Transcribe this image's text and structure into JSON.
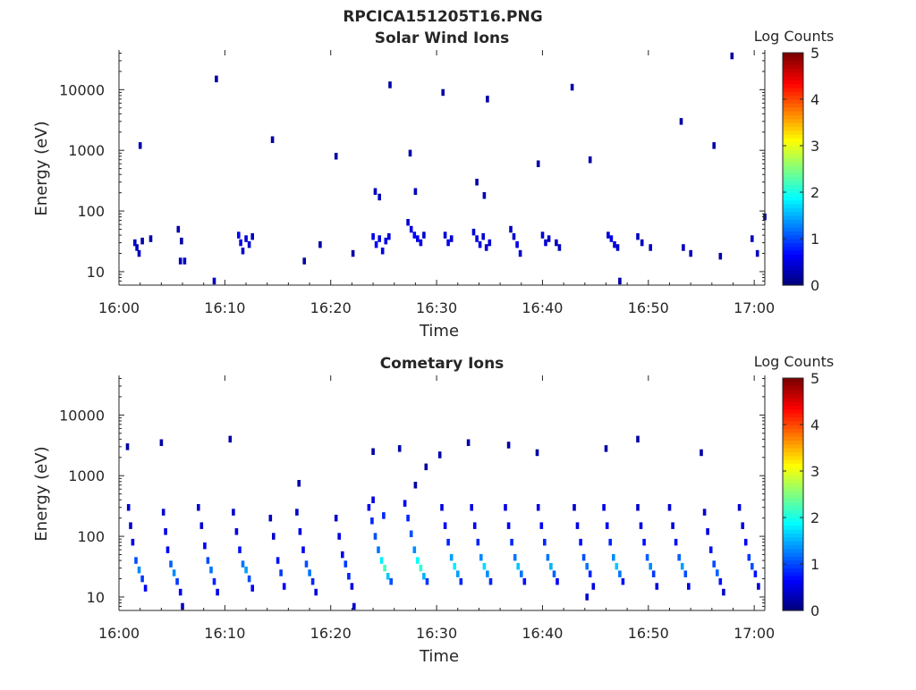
{
  "figure": {
    "title": "RPCICA151205T16.PNG"
  },
  "chart_data": [
    {
      "type": "heatmap",
      "title": "Solar Wind Ions",
      "xlabel": "Time",
      "ylabel": "Energy (eV)",
      "xticks": [
        "16:00",
        "16:10",
        "16:20",
        "16:30",
        "16:40",
        "16:50",
        "17:00"
      ],
      "xlim_minutes": [
        0,
        61
      ],
      "yscale": "log",
      "ylim": [
        6,
        45000
      ],
      "yticks": [
        10,
        100,
        1000,
        10000
      ],
      "ytick_labels": [
        "10",
        "100",
        "1000",
        "10000"
      ],
      "colorbar": {
        "label": "Log Counts",
        "range": [
          0,
          5
        ],
        "ticks": [
          "0",
          "1",
          "2",
          "3",
          "4",
          "5"
        ]
      },
      "cells": [
        [
          1.5,
          30,
          0.3
        ],
        [
          1.7,
          25,
          0.3
        ],
        [
          1.9,
          20,
          0.3
        ],
        [
          2.2,
          32,
          0.2
        ],
        [
          3.0,
          35,
          0.2
        ],
        [
          5.9,
          32,
          0.2
        ],
        [
          5.6,
          50,
          0.2
        ],
        [
          5.8,
          15,
          0.3
        ],
        [
          6.2,
          15,
          0.3
        ],
        [
          9.0,
          7,
          0.3
        ],
        [
          11.3,
          40,
          0.6
        ],
        [
          11.5,
          30,
          0.5
        ],
        [
          11.7,
          22,
          0.4
        ],
        [
          12.0,
          35,
          0.4
        ],
        [
          12.3,
          28,
          0.4
        ],
        [
          12.6,
          38,
          0.3
        ],
        [
          17.5,
          15,
          0.2
        ],
        [
          19.0,
          28,
          0.2
        ],
        [
          22.1,
          20,
          0.2
        ],
        [
          24.0,
          38,
          0.5
        ],
        [
          24.3,
          28,
          0.6
        ],
        [
          24.6,
          35,
          0.5
        ],
        [
          24.9,
          22,
          0.5
        ],
        [
          25.2,
          32,
          0.5
        ],
        [
          25.5,
          38,
          0.4
        ],
        [
          24.2,
          210,
          0.3
        ],
        [
          24.6,
          170,
          0.3
        ],
        [
          27.3,
          65,
          0.4
        ],
        [
          27.6,
          50,
          0.5
        ],
        [
          27.9,
          40,
          0.6
        ],
        [
          28.2,
          35,
          0.5
        ],
        [
          28.5,
          30,
          0.5
        ],
        [
          28.8,
          40,
          0.4
        ],
        [
          28.0,
          210,
          0.3
        ],
        [
          30.8,
          40,
          0.4
        ],
        [
          31.1,
          30,
          0.5
        ],
        [
          31.4,
          35,
          0.4
        ],
        [
          33.5,
          45,
          0.4
        ],
        [
          33.8,
          35,
          0.5
        ],
        [
          34.1,
          28,
          0.5
        ],
        [
          34.4,
          38,
          0.4
        ],
        [
          34.7,
          25,
          0.4
        ],
        [
          35.0,
          30,
          0.4
        ],
        [
          34.5,
          180,
          0.3
        ],
        [
          37.0,
          50,
          0.3
        ],
        [
          37.3,
          38,
          0.4
        ],
        [
          37.6,
          28,
          0.5
        ],
        [
          37.9,
          20,
          0.4
        ],
        [
          40.0,
          40,
          0.4
        ],
        [
          40.3,
          30,
          0.4
        ],
        [
          40.6,
          35,
          0.3
        ],
        [
          41.3,
          30,
          0.3
        ],
        [
          41.6,
          25,
          0.3
        ],
        [
          46.2,
          40,
          0.4
        ],
        [
          46.5,
          35,
          0.5
        ],
        [
          46.8,
          28,
          0.4
        ],
        [
          47.1,
          25,
          0.4
        ],
        [
          47.3,
          7,
          0.2
        ],
        [
          49.0,
          38,
          0.3
        ],
        [
          49.4,
          30,
          0.3
        ],
        [
          50.2,
          25,
          0.3
        ],
        [
          53.3,
          25,
          0.3
        ],
        [
          54.0,
          20,
          0.3
        ],
        [
          56.8,
          18,
          0.2
        ],
        [
          59.8,
          35,
          0.3
        ],
        [
          60.3,
          20,
          0.3
        ],
        [
          2.0,
          1200,
          0.2
        ],
        [
          9.2,
          15000,
          0.2
        ],
        [
          14.5,
          1500,
          0.2
        ],
        [
          25.6,
          12000,
          0.2
        ],
        [
          30.6,
          9000,
          0.2
        ],
        [
          34.8,
          7000,
          0.2
        ],
        [
          42.8,
          11000,
          0.2
        ],
        [
          57.9,
          36000,
          0.2
        ],
        [
          53.1,
          3000,
          0.2
        ],
        [
          44.5,
          700,
          0.2
        ],
        [
          20.5,
          800,
          0.2
        ],
        [
          27.5,
          900,
          0.2
        ],
        [
          33.8,
          300,
          0.2
        ],
        [
          39.6,
          600,
          0.2
        ],
        [
          61.0,
          80,
          0.2
        ],
        [
          56.2,
          1200,
          0.2
        ]
      ]
    },
    {
      "type": "heatmap",
      "title": "Cometary Ions",
      "xlabel": "Time",
      "ylabel": "Energy (eV)",
      "xticks": [
        "16:00",
        "16:10",
        "16:20",
        "16:30",
        "16:40",
        "16:50",
        "17:00"
      ],
      "xlim_minutes": [
        0,
        61
      ],
      "yscale": "log",
      "ylim": [
        6,
        45000
      ],
      "yticks": [
        10,
        100,
        1000,
        10000
      ],
      "ytick_labels": [
        "10",
        "100",
        "1000",
        "10000"
      ],
      "colorbar": {
        "label": "Log Counts",
        "range": [
          0,
          5
        ],
        "ticks": [
          "0",
          "1",
          "2",
          "3",
          "4",
          "5"
        ]
      },
      "cells": [
        [
          0.9,
          300,
          0.4
        ],
        [
          1.1,
          150,
          0.4
        ],
        [
          1.3,
          80,
          0.5
        ],
        [
          1.6,
          40,
          1.0
        ],
        [
          1.9,
          28,
          1.3
        ],
        [
          2.2,
          20,
          0.9
        ],
        [
          2.5,
          14,
          0.6
        ],
        [
          4.2,
          250,
          0.4
        ],
        [
          4.4,
          120,
          0.5
        ],
        [
          4.6,
          60,
          0.6
        ],
        [
          4.9,
          35,
          1.1
        ],
        [
          5.2,
          25,
          1.3
        ],
        [
          5.5,
          18,
          0.9
        ],
        [
          5.8,
          12,
          0.6
        ],
        [
          6.0,
          7,
          0.4
        ],
        [
          7.5,
          300,
          0.4
        ],
        [
          7.8,
          150,
          0.4
        ],
        [
          8.1,
          70,
          0.6
        ],
        [
          8.4,
          40,
          1.0
        ],
        [
          8.7,
          28,
          1.2
        ],
        [
          9.0,
          18,
          0.8
        ],
        [
          9.3,
          12,
          0.5
        ],
        [
          10.8,
          250,
          0.4
        ],
        [
          11.1,
          120,
          0.5
        ],
        [
          11.4,
          60,
          0.7
        ],
        [
          11.7,
          35,
          1.2
        ],
        [
          12.0,
          28,
          1.4
        ],
        [
          12.3,
          20,
          1.0
        ],
        [
          12.6,
          14,
          0.6
        ],
        [
          14.3,
          200,
          0.3
        ],
        [
          14.6,
          100,
          0.4
        ],
        [
          15.0,
          40,
          0.7
        ],
        [
          15.3,
          25,
          0.9
        ],
        [
          15.6,
          15,
          0.6
        ],
        [
          16.8,
          250,
          0.4
        ],
        [
          17.1,
          120,
          0.5
        ],
        [
          17.4,
          60,
          0.6
        ],
        [
          17.7,
          35,
          1.0
        ],
        [
          18.0,
          25,
          1.2
        ],
        [
          18.3,
          18,
          0.8
        ],
        [
          18.6,
          12,
          0.5
        ],
        [
          20.5,
          200,
          0.4
        ],
        [
          20.8,
          100,
          0.5
        ],
        [
          21.1,
          50,
          0.6
        ],
        [
          21.4,
          35,
          0.9
        ],
        [
          21.7,
          22,
          0.8
        ],
        [
          22.0,
          15,
          0.5
        ],
        [
          22.2,
          7,
          0.4
        ],
        [
          23.6,
          300,
          0.6
        ],
        [
          23.9,
          180,
          0.8
        ],
        [
          24.2,
          100,
          1.0
        ],
        [
          24.5,
          60,
          1.2
        ],
        [
          24.8,
          40,
          1.8
        ],
        [
          25.1,
          30,
          2.2
        ],
        [
          25.4,
          22,
          1.6
        ],
        [
          25.7,
          18,
          1.0
        ],
        [
          24.0,
          400,
          0.5
        ],
        [
          25.0,
          220,
          0.8
        ],
        [
          27.0,
          350,
          0.6
        ],
        [
          27.3,
          200,
          0.8
        ],
        [
          27.6,
          110,
          1.0
        ],
        [
          27.9,
          60,
          1.3
        ],
        [
          28.2,
          40,
          1.9
        ],
        [
          28.5,
          30,
          2.1
        ],
        [
          28.8,
          22,
          1.5
        ],
        [
          29.1,
          18,
          0.9
        ],
        [
          30.5,
          300,
          0.5
        ],
        [
          30.8,
          150,
          0.6
        ],
        [
          31.1,
          80,
          0.8
        ],
        [
          31.4,
          45,
          1.4
        ],
        [
          31.7,
          32,
          1.8
        ],
        [
          32.0,
          24,
          1.4
        ],
        [
          32.3,
          18,
          0.8
        ],
        [
          33.3,
          300,
          0.5
        ],
        [
          33.6,
          150,
          0.6
        ],
        [
          33.9,
          80,
          0.8
        ],
        [
          34.2,
          45,
          1.3
        ],
        [
          34.5,
          32,
          1.7
        ],
        [
          34.8,
          24,
          1.3
        ],
        [
          35.1,
          18,
          0.8
        ],
        [
          36.5,
          300,
          0.5
        ],
        [
          36.8,
          150,
          0.6
        ],
        [
          37.1,
          80,
          0.8
        ],
        [
          37.4,
          45,
          1.2
        ],
        [
          37.7,
          32,
          1.6
        ],
        [
          38.0,
          24,
          1.2
        ],
        [
          38.3,
          18,
          0.7
        ],
        [
          39.6,
          300,
          0.5
        ],
        [
          39.9,
          150,
          0.6
        ],
        [
          40.2,
          80,
          0.8
        ],
        [
          40.5,
          45,
          1.2
        ],
        [
          40.8,
          32,
          1.5
        ],
        [
          41.1,
          24,
          1.1
        ],
        [
          41.4,
          18,
          0.6
        ],
        [
          43.0,
          300,
          0.4
        ],
        [
          43.3,
          150,
          0.5
        ],
        [
          43.6,
          80,
          0.7
        ],
        [
          43.9,
          45,
          1.0
        ],
        [
          44.2,
          32,
          1.2
        ],
        [
          44.5,
          24,
          0.8
        ],
        [
          44.8,
          15,
          0.5
        ],
        [
          44.2,
          10,
          0.4
        ],
        [
          45.8,
          300,
          0.5
        ],
        [
          46.1,
          150,
          0.6
        ],
        [
          46.4,
          80,
          0.8
        ],
        [
          46.7,
          45,
          1.3
        ],
        [
          47.0,
          32,
          1.6
        ],
        [
          47.3,
          24,
          1.2
        ],
        [
          47.6,
          18,
          0.7
        ],
        [
          49.0,
          300,
          0.4
        ],
        [
          49.3,
          150,
          0.5
        ],
        [
          49.6,
          80,
          0.7
        ],
        [
          49.9,
          45,
          1.1
        ],
        [
          50.2,
          32,
          1.3
        ],
        [
          50.5,
          24,
          0.9
        ],
        [
          50.8,
          15,
          0.5
        ],
        [
          52.0,
          300,
          0.4
        ],
        [
          52.3,
          150,
          0.5
        ],
        [
          52.6,
          80,
          0.7
        ],
        [
          52.9,
          45,
          1.1
        ],
        [
          53.2,
          32,
          1.4
        ],
        [
          53.5,
          24,
          1.0
        ],
        [
          53.8,
          15,
          0.5
        ],
        [
          55.3,
          250,
          0.4
        ],
        [
          55.6,
          120,
          0.5
        ],
        [
          55.9,
          60,
          0.7
        ],
        [
          56.2,
          35,
          1.0
        ],
        [
          56.5,
          25,
          1.1
        ],
        [
          56.8,
          18,
          0.7
        ],
        [
          57.1,
          12,
          0.4
        ],
        [
          58.6,
          300,
          0.4
        ],
        [
          58.9,
          150,
          0.5
        ],
        [
          59.2,
          80,
          0.6
        ],
        [
          59.5,
          45,
          0.9
        ],
        [
          59.8,
          32,
          1.0
        ],
        [
          60.1,
          24,
          0.7
        ],
        [
          60.4,
          15,
          0.4
        ],
        [
          0.8,
          3000,
          0.2
        ],
        [
          4.0,
          3500,
          0.2
        ],
        [
          10.5,
          4000,
          0.2
        ],
        [
          24.0,
          2500,
          0.2
        ],
        [
          26.5,
          2800,
          0.2
        ],
        [
          30.3,
          2200,
          0.2
        ],
        [
          33.0,
          3500,
          0.2
        ],
        [
          36.8,
          3200,
          0.2
        ],
        [
          39.5,
          2400,
          0.2
        ],
        [
          46.0,
          2800,
          0.2
        ],
        [
          49.0,
          4000,
          0.2
        ],
        [
          55.0,
          2400,
          0.2
        ],
        [
          29.0,
          1400,
          0.2
        ],
        [
          28.0,
          700,
          0.2
        ],
        [
          17.0,
          750,
          0.2
        ]
      ]
    }
  ]
}
